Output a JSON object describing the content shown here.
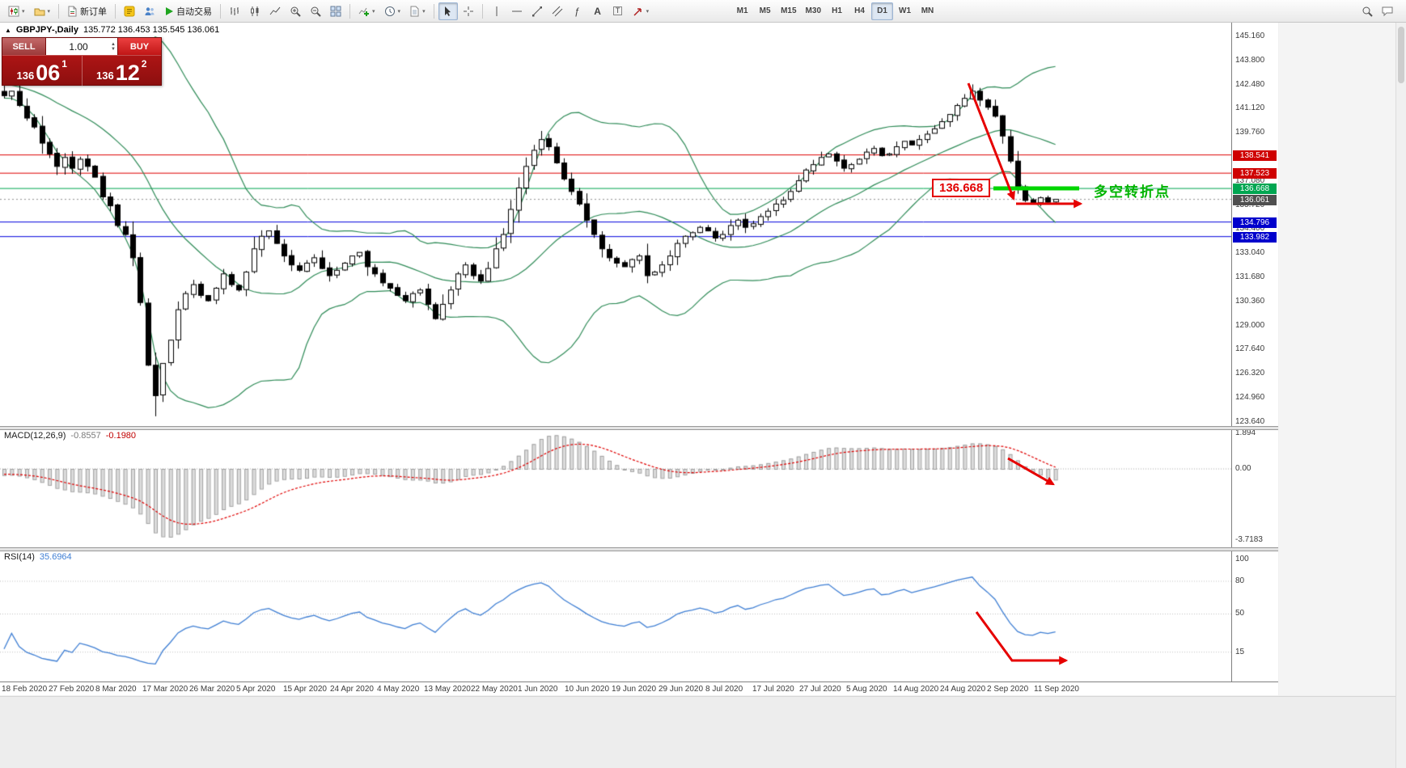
{
  "toolbar": {
    "new_order_label": "新订单",
    "autotrading_label": "自动交易",
    "timeframes": [
      "M1",
      "M5",
      "M15",
      "M30",
      "H1",
      "H4",
      "D1",
      "W1",
      "MN"
    ],
    "active_timeframe": "D1"
  },
  "chart": {
    "type": "candlestick",
    "title": "GBPJPY-,Daily",
    "ohlc_text": "135.772 136.453 135.545 136.061",
    "trade_panel": {
      "sell_label": "SELL",
      "buy_label": "BUY",
      "volume": "1.00",
      "sell_price": {
        "big": "136",
        "pips": "06",
        "sup": "1"
      },
      "buy_price": {
        "big": "136",
        "pips": "12",
        "sup": "2"
      }
    },
    "y_axis_labels": [
      "145.160",
      "143.800",
      "142.480",
      "141.120",
      "139.760",
      "138.440",
      "137.080",
      "135.720",
      "134.400",
      "133.040",
      "131.680",
      "130.360",
      "129.000",
      "127.640",
      "126.320",
      "124.960",
      "123.640"
    ],
    "x_axis_labels": [
      "18 Feb 2020",
      "27 Feb 2020",
      "8 Mar 2020",
      "17 Mar 2020",
      "26 Mar 2020",
      "5 Apr 2020",
      "15 Apr 2020",
      "24 Apr 2020",
      "4 May 2020",
      "13 May 2020",
      "22 May 2020",
      "1 Jun 2020",
      "10 Jun 2020",
      "19 Jun 2020",
      "29 Jun 2020",
      "8 Jul 2020",
      "17 Jul 2020",
      "27 Jul 2020",
      "5 Aug 2020",
      "14 Aug 2020",
      "24 Aug 2020",
      "2 Sep 2020",
      "11 Sep 2020"
    ],
    "levels": [
      {
        "price": 138.541,
        "label": "138.541",
        "color": "#dd0000",
        "tag_bg": "#cf0000"
      },
      {
        "price": 137.523,
        "label": "137.523",
        "color": "#dd0000",
        "tag_bg": "#cf0000"
      },
      {
        "price": 136.668,
        "label": "136.668",
        "color": "#00a651",
        "tag_bg": "#00a651"
      },
      {
        "price": 134.796,
        "label": "134.796",
        "color": "#0000dd",
        "tag_bg": "#0000cc"
      },
      {
        "price": 133.982,
        "label": "133.982",
        "color": "#0000dd",
        "tag_bg": "#0000cc"
      }
    ],
    "current_price": {
      "value": 136.061,
      "label": "136.061",
      "tag_bg": "#4f4f4f"
    },
    "bollinger": {
      "period": 20,
      "deviation": 2,
      "color": "#2e8b57"
    },
    "closes": [
      141.85,
      142.1,
      141.3,
      140.6,
      140.1,
      139.2,
      138.6,
      137.9,
      138.4,
      137.8,
      138.3,
      137.9,
      137.3,
      136.2,
      135.7,
      134.6,
      134.1,
      132.8,
      130.3,
      126.8,
      125.1,
      126.9,
      128.2,
      129.9,
      130.8,
      131.3,
      130.7,
      130.4,
      131.1,
      131.9,
      131.3,
      131.0,
      132.0,
      133.3,
      134.0,
      134.3,
      133.6,
      132.9,
      132.4,
      132.1,
      132.5,
      132.8,
      132.2,
      131.8,
      132.1,
      132.5,
      132.9,
      133.1,
      132.3,
      131.9,
      131.4,
      131.1,
      130.7,
      130.4,
      130.8,
      131.0,
      130.2,
      129.4,
      130.2,
      131.0,
      131.9,
      132.4,
      131.8,
      131.5,
      132.2,
      133.3,
      134.1,
      135.5,
      136.7,
      137.9,
      138.8,
      139.4,
      139.0,
      138.1,
      137.2,
      136.5,
      135.8,
      134.9,
      134.1,
      133.3,
      132.8,
      132.5,
      132.3,
      132.7,
      132.9,
      131.8,
      132.0,
      132.4,
      132.9,
      133.6,
      134.0,
      134.2,
      134.5,
      134.3,
      133.9,
      134.1,
      134.6,
      134.9,
      134.5,
      134.7,
      135.1,
      135.4,
      135.8,
      136.0,
      136.5,
      137.1,
      137.7,
      138.0,
      138.4,
      138.6,
      138.2,
      137.8,
      138.0,
      138.3,
      138.7,
      138.9,
      138.5,
      138.6,
      139.0,
      139.3,
      139.1,
      139.4,
      139.7,
      140.0,
      140.4,
      140.8,
      141.3,
      141.7,
      142.1,
      141.6,
      141.2,
      140.7,
      139.6,
      138.2,
      136.7,
      136.0,
      135.85,
      136.15,
      135.9,
      136.06
    ],
    "annotations": {
      "price_label": "136.668",
      "note_text": "多空转折点"
    }
  },
  "macd": {
    "name": "MACD(12,26,9)",
    "values": [
      "-0.8557",
      "-0.1980"
    ],
    "axis_labels": [
      "1.894",
      "0.00",
      "-3.7183"
    ],
    "params": {
      "fast": 12,
      "slow": 26,
      "signal": 9
    }
  },
  "rsi": {
    "name": "RSI(14)",
    "value": "35.6964",
    "period": 14,
    "axis_labels": [
      "100",
      "80",
      "50",
      "15"
    ],
    "levels": [
      80,
      50,
      15
    ],
    "line_color": "#3f7fd4"
  }
}
